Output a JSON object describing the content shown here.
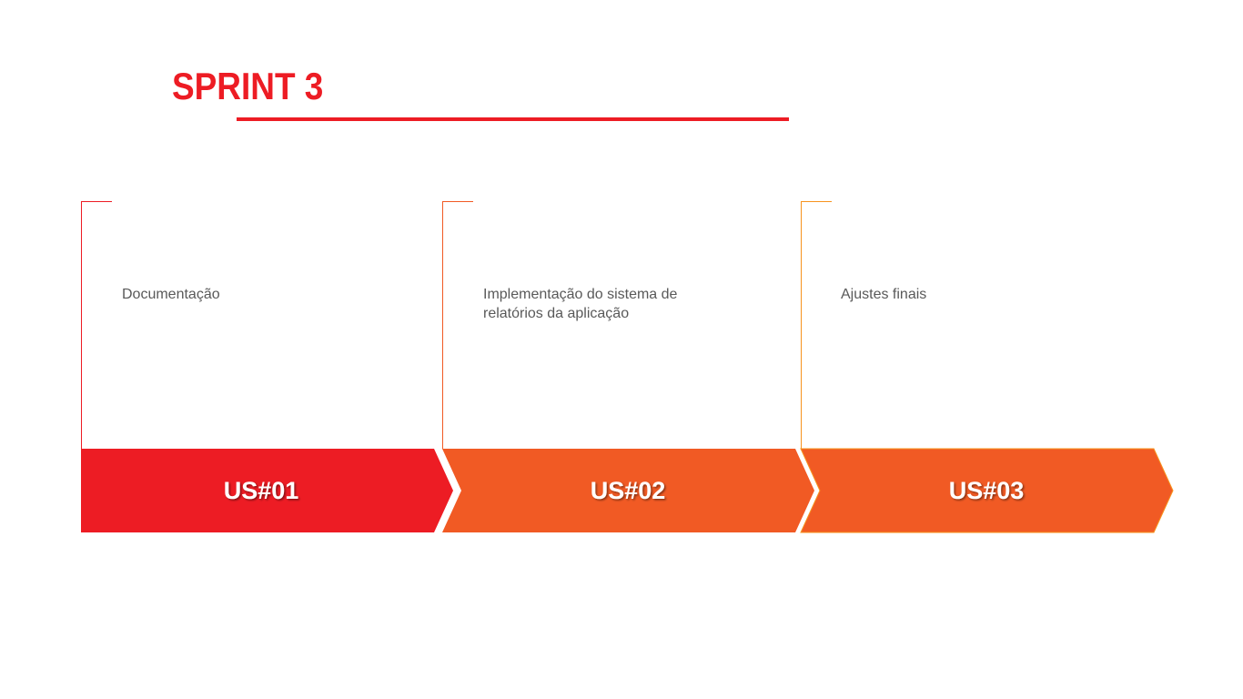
{
  "title": "SPRINT 3",
  "colors": {
    "title": "#ed1c24",
    "step1": "#ed1c24",
    "step2": "#f15a24",
    "step3": "#f15a24",
    "bracket1": "#ed1c24",
    "bracket2": "#f15a24",
    "bracket3": "#f7931e",
    "description": "#595959",
    "label": "#ffffff"
  },
  "steps": [
    {
      "label": "US#01",
      "description": "Documentação"
    },
    {
      "label": "US#02",
      "description": "Implementação do sistema de relatórios da aplicação"
    },
    {
      "label": "US#03",
      "description": "Ajustes finais"
    }
  ]
}
